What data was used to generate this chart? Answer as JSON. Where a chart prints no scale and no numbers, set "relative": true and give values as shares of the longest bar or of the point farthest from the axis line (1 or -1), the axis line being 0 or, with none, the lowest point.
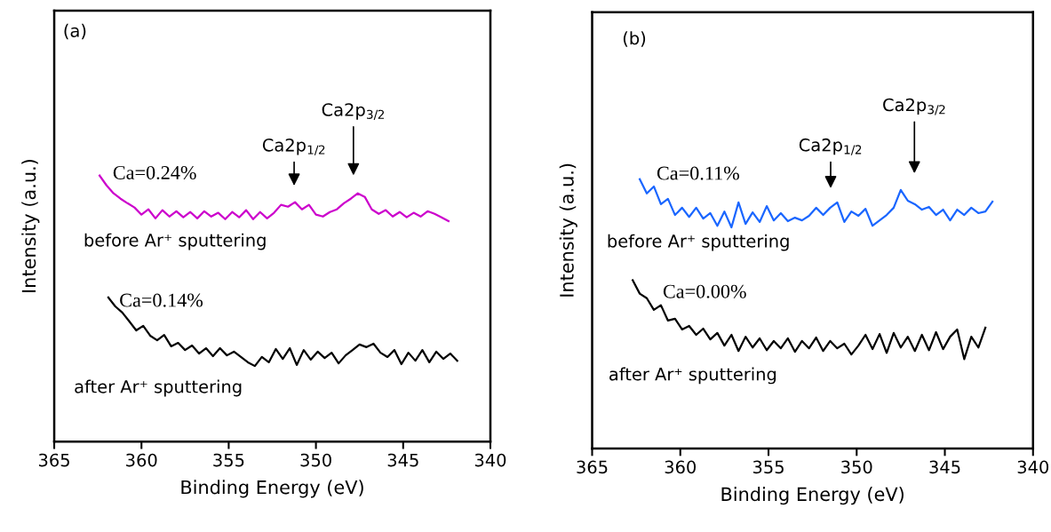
{
  "chart_data": [
    {
      "type": "line",
      "relative": true,
      "xlabel": "Binding Energy (eV)",
      "ylabel": "Intensity (a.u.)",
      "xlim": [
        365,
        340
      ],
      "xticks": [
        365,
        360,
        355,
        350,
        345,
        340
      ],
      "tick_labels": "x",
      "grid": false,
      "legend": false,
      "annotations": [
        "(a)",
        "Ca=0.24%",
        "Ca=0.14%",
        "Ca2p$_{1/2}$",
        "Ca2p$_{3/2}$"
      ],
      "series": [
        {
          "name": "before Ar⁺ sputtering",
          "color": "#cc00cc",
          "x": [
            362.4,
            362.0,
            361.6,
            361.2,
            360.8,
            360.4,
            360.0,
            359.6,
            359.2,
            358.8,
            358.4,
            358.0,
            357.6,
            357.2,
            356.8,
            356.4,
            356.0,
            355.6,
            355.2,
            354.8,
            354.4,
            354.0,
            353.6,
            353.2,
            352.8,
            352.4,
            352.0,
            351.6,
            351.2,
            350.8,
            350.4,
            350.0,
            349.6,
            349.2,
            348.8,
            348.4,
            348.0,
            347.6,
            347.2,
            346.8,
            346.4,
            346.0,
            345.6,
            345.2,
            344.8,
            344.4,
            344.0,
            343.6,
            343.2,
            342.8,
            342.4
          ],
          "values": [
            1.0,
            0.963,
            0.933,
            0.913,
            0.896,
            0.88,
            0.853,
            0.873,
            0.839,
            0.87,
            0.846,
            0.866,
            0.843,
            0.863,
            0.839,
            0.866,
            0.846,
            0.86,
            0.836,
            0.863,
            0.843,
            0.87,
            0.836,
            0.863,
            0.839,
            0.86,
            0.89,
            0.883,
            0.9,
            0.873,
            0.89,
            0.853,
            0.846,
            0.863,
            0.873,
            0.896,
            0.913,
            0.933,
            0.92,
            0.873,
            0.856,
            0.87,
            0.846,
            0.863,
            0.843,
            0.86,
            0.846,
            0.866,
            0.856,
            0.843,
            0.829
          ]
        },
        {
          "name": "after Ar⁺ sputtering",
          "color": "#000000",
          "x": [
            361.9,
            361.5,
            361.1,
            360.7,
            360.3,
            359.9,
            359.5,
            359.1,
            358.7,
            358.3,
            357.9,
            357.5,
            357.1,
            356.7,
            356.3,
            355.9,
            355.5,
            355.1,
            354.7,
            354.3,
            353.9,
            353.5,
            353.1,
            352.7,
            352.3,
            351.9,
            351.5,
            351.1,
            350.7,
            350.3,
            349.9,
            349.5,
            349.1,
            348.7,
            348.3,
            347.9,
            347.5,
            347.1,
            346.7,
            346.3,
            345.9,
            345.5,
            345.1,
            344.7,
            344.3,
            343.9,
            343.5,
            343.1,
            342.7,
            342.3,
            341.9
          ],
          "values": [
            0.542,
            0.508,
            0.485,
            0.452,
            0.418,
            0.435,
            0.398,
            0.381,
            0.401,
            0.358,
            0.371,
            0.344,
            0.361,
            0.331,
            0.351,
            0.321,
            0.351,
            0.324,
            0.338,
            0.318,
            0.298,
            0.284,
            0.318,
            0.298,
            0.348,
            0.311,
            0.351,
            0.288,
            0.344,
            0.308,
            0.338,
            0.314,
            0.334,
            0.294,
            0.324,
            0.344,
            0.365,
            0.355,
            0.368,
            0.334,
            0.318,
            0.344,
            0.291,
            0.334,
            0.304,
            0.344,
            0.298,
            0.338,
            0.311,
            0.331,
            0.304
          ]
        }
      ]
    },
    {
      "type": "line",
      "relative": true,
      "xlabel": "Binding Energy (eV)",
      "ylabel": "Intensity (a.u.)",
      "xlim": [
        365,
        340
      ],
      "xticks": [
        365,
        360,
        355,
        350,
        345,
        340
      ],
      "tick_labels": "x",
      "grid": false,
      "legend": false,
      "annotations": [
        "(b)",
        "Ca=0.11%",
        "Ca=0.00%",
        "Ca2p$_{1/2}$",
        "Ca2p$_{3/2}$"
      ],
      "series": [
        {
          "name": "before Ar⁺ sputtering",
          "color": "#1a66ff",
          "x": [
            362.3,
            361.9,
            361.5,
            361.1,
            360.7,
            360.3,
            359.9,
            359.5,
            359.1,
            358.7,
            358.3,
            357.9,
            357.5,
            357.1,
            356.7,
            356.3,
            355.9,
            355.5,
            355.1,
            354.7,
            354.3,
            353.9,
            353.5,
            353.1,
            352.7,
            352.3,
            351.9,
            351.5,
            351.1,
            350.7,
            350.3,
            349.9,
            349.5,
            349.1,
            348.7,
            348.3,
            347.9,
            347.5,
            347.1,
            346.7,
            346.3,
            345.9,
            345.5,
            345.1,
            344.7,
            344.3,
            343.9,
            343.5,
            343.1,
            342.7,
            342.3
          ],
          "values": [
            1.0,
            0.947,
            0.973,
            0.907,
            0.927,
            0.867,
            0.894,
            0.86,
            0.894,
            0.854,
            0.874,
            0.827,
            0.88,
            0.821,
            0.914,
            0.834,
            0.877,
            0.841,
            0.9,
            0.847,
            0.874,
            0.844,
            0.857,
            0.847,
            0.864,
            0.894,
            0.867,
            0.894,
            0.914,
            0.841,
            0.88,
            0.864,
            0.89,
            0.827,
            0.847,
            0.867,
            0.894,
            0.96,
            0.92,
            0.907,
            0.887,
            0.897,
            0.867,
            0.887,
            0.847,
            0.887,
            0.867,
            0.894,
            0.874,
            0.88,
            0.917
          ]
        },
        {
          "name": "after Ar⁺ sputtering",
          "color": "#000000",
          "x": [
            362.7,
            362.3,
            361.9,
            361.5,
            361.1,
            360.7,
            360.3,
            359.9,
            359.5,
            359.1,
            358.7,
            358.3,
            357.9,
            357.5,
            357.1,
            356.7,
            356.3,
            355.9,
            355.5,
            355.1,
            354.7,
            354.3,
            353.9,
            353.5,
            353.1,
            352.7,
            352.3,
            351.9,
            351.5,
            351.1,
            350.7,
            350.3,
            349.9,
            349.5,
            349.1,
            348.7,
            348.3,
            347.9,
            347.5,
            347.1,
            346.7,
            346.3,
            345.9,
            345.5,
            345.1,
            344.7,
            344.3,
            343.9,
            343.5,
            343.1,
            342.7
          ],
          "values": [
            0.625,
            0.575,
            0.558,
            0.515,
            0.532,
            0.475,
            0.482,
            0.442,
            0.455,
            0.422,
            0.445,
            0.405,
            0.429,
            0.382,
            0.422,
            0.362,
            0.415,
            0.375,
            0.409,
            0.365,
            0.399,
            0.372,
            0.409,
            0.359,
            0.399,
            0.372,
            0.412,
            0.362,
            0.399,
            0.372,
            0.389,
            0.349,
            0.382,
            0.422,
            0.369,
            0.425,
            0.355,
            0.429,
            0.375,
            0.415,
            0.362,
            0.422,
            0.365,
            0.432,
            0.369,
            0.415,
            0.442,
            0.332,
            0.415,
            0.375,
            0.449
          ]
        }
      ]
    }
  ]
}
